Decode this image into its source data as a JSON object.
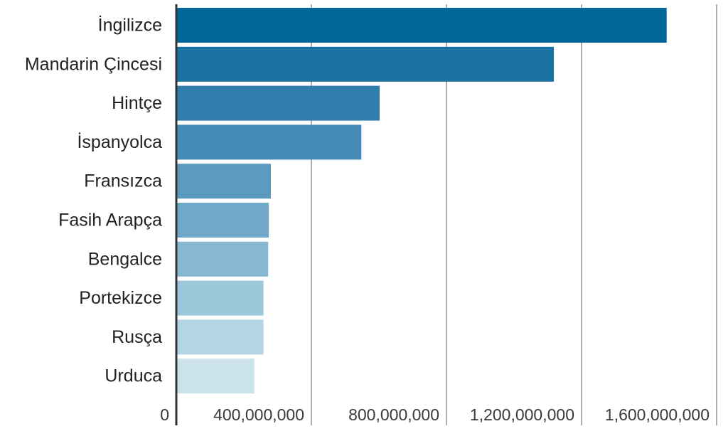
{
  "chart_data": {
    "type": "bar",
    "orientation": "horizontal",
    "title": "",
    "xlabel": "",
    "ylabel": "",
    "categories": [
      "İngilizce",
      "Mandarin Çincesi",
      "Hintçe",
      "İspanyolca",
      "Fransızca",
      "Fasih Arapça",
      "Bengalce",
      "Portekizce",
      "Rusça",
      "Urduca"
    ],
    "values": [
      1452000000,
      1118000000,
      602000000,
      548000000,
      280000000,
      274000000,
      272000000,
      258000000,
      258000000,
      231000000
    ],
    "bar_colors": [
      "#01669a",
      "#1a72a2",
      "#2f7eab",
      "#448cb5",
      "#5c9bbf",
      "#70a9c8",
      "#86b8d1",
      "#9dc7da",
      "#b4d5e3",
      "#cce3ec"
    ],
    "xlim": [
      0,
      1600000000
    ],
    "xticks": [
      0,
      400000000,
      800000000,
      1200000000,
      1600000000
    ],
    "xtick_labels": [
      "0",
      "400,000,000",
      "800,000,000",
      "1,200,000,000",
      "1,600,000,000"
    ],
    "grid": true,
    "legend": "none"
  }
}
